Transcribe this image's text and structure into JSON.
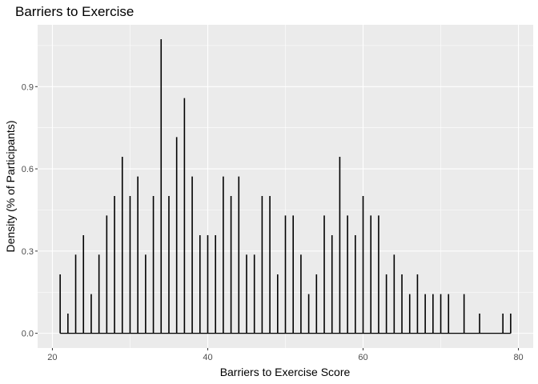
{
  "chart_data": {
    "type": "bar",
    "title": "Barriers to Exercise",
    "xlabel": "Barriers to Exercise Score",
    "ylabel": "Density (% of Participants)",
    "xlim": [
      18.1,
      81.9
    ],
    "ylim": [
      -0.0536,
      1.1256
    ],
    "x_ticks": [
      20,
      40,
      60,
      80
    ],
    "y_ticks": [
      0.0,
      0.3,
      0.6,
      0.9
    ],
    "x_tick_labels": [
      "20",
      "40",
      "60",
      "80"
    ],
    "y_tick_labels": [
      "0.0",
      "0.3",
      "0.6",
      "0.9"
    ],
    "grid": true,
    "x": [
      21,
      22,
      23,
      24,
      25,
      26,
      27,
      28,
      29,
      30,
      31,
      32,
      33,
      34,
      35,
      36,
      37,
      38,
      39,
      40,
      41,
      42,
      43,
      44,
      45,
      46,
      47,
      48,
      49,
      50,
      51,
      52,
      53,
      54,
      55,
      56,
      57,
      58,
      59,
      60,
      61,
      62,
      63,
      64,
      65,
      66,
      67,
      68,
      69,
      70,
      71,
      73,
      75,
      78,
      79
    ],
    "values": [
      0.215,
      0.072,
      0.287,
      0.358,
      0.143,
      0.287,
      0.43,
      0.501,
      0.644,
      0.501,
      0.572,
      0.287,
      0.501,
      1.073,
      0.501,
      0.716,
      0.858,
      0.572,
      0.358,
      0.358,
      0.358,
      0.572,
      0.501,
      0.572,
      0.287,
      0.287,
      0.501,
      0.501,
      0.215,
      0.43,
      0.43,
      0.287,
      0.143,
      0.215,
      0.43,
      0.358,
      0.644,
      0.43,
      0.358,
      0.501,
      0.43,
      0.43,
      0.215,
      0.287,
      0.215,
      0.143,
      0.215,
      0.143,
      0.143,
      0.143,
      0.143,
      0.143,
      0.072,
      0.072,
      0.072
    ]
  }
}
